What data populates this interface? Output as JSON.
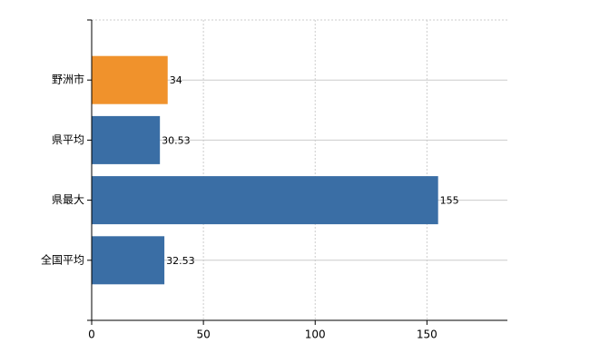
{
  "chart_data": {
    "type": "hbar",
    "categories": [
      "野洲市",
      "県平均",
      "県最大",
      "全国平均"
    ],
    "values": [
      34,
      30.53,
      155,
      32.53
    ],
    "colors": [
      "#f0922c",
      "#3a6ea5",
      "#3a6ea5",
      "#3a6ea5"
    ],
    "xlim": [
      0,
      186
    ],
    "xticks": [
      0,
      50,
      100,
      150
    ],
    "grid": true
  }
}
